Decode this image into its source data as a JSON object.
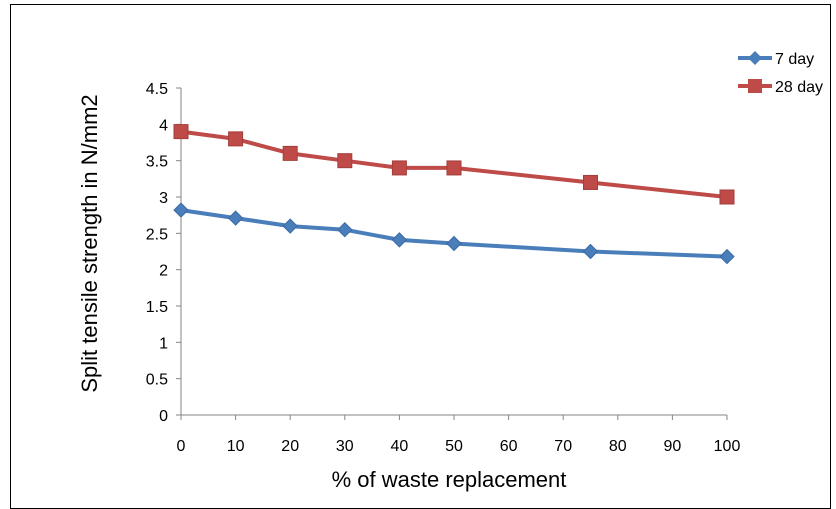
{
  "chart_data": {
    "type": "line",
    "title": "",
    "xlabel": "% of waste replacement",
    "ylabel": "Split tensile strength in N/mm2",
    "x": [
      0,
      10,
      20,
      30,
      40,
      50,
      75,
      100
    ],
    "xlim": [
      0,
      100
    ],
    "xticks": [
      0,
      10,
      20,
      30,
      40,
      50,
      60,
      70,
      80,
      90,
      100
    ],
    "ylim": [
      0,
      4.5
    ],
    "yticks": [
      0,
      0.5,
      1,
      1.5,
      2,
      2.5,
      3,
      3.5,
      4,
      4.5
    ],
    "grid": false,
    "legend_position": "top-right",
    "series": [
      {
        "name": "7 day",
        "values": [
          2.82,
          2.71,
          2.6,
          2.55,
          2.41,
          2.36,
          2.25,
          2.18
        ],
        "color": "#4a7ebb",
        "marker": "diamond"
      },
      {
        "name": "28 day",
        "values": [
          3.9,
          3.8,
          3.6,
          3.5,
          3.4,
          3.4,
          3.2,
          3.0
        ],
        "color": "#be4b48",
        "marker": "square"
      }
    ]
  }
}
